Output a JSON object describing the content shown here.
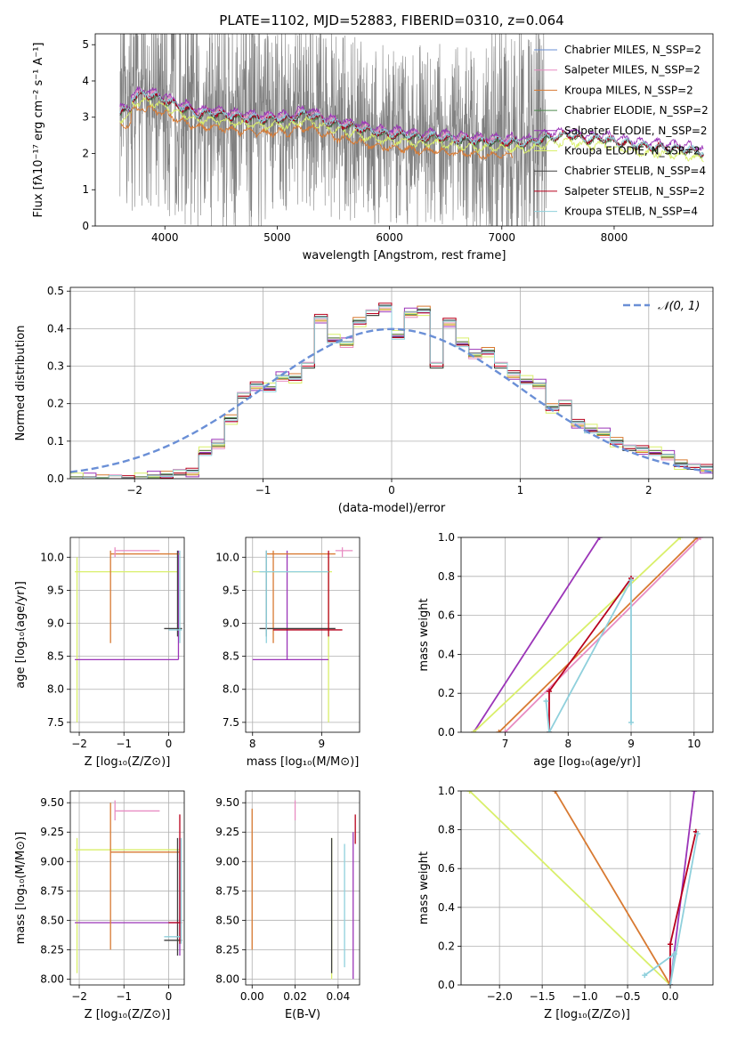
{
  "figure": {
    "title": "PLATE=1102, MJD=52883, FIBERID=0310, z=0.064"
  },
  "colors": {
    "data": "#808080",
    "chabrier_miles": "#6a8fd6",
    "salpeter_miles": "#e88cc2",
    "kroupa_miles": "#d87a32",
    "chabrier_elodie": "#4e8a4e",
    "salpeter_elodie": "#9b35b8",
    "kroupa_elodie": "#d9ef6a",
    "chabrier_stelib": "#404040",
    "salpeter_stelib": "#b8001c",
    "kroupa_stelib": "#8fd0dc",
    "normal": "#6a8fd6"
  },
  "chart_data": [
    {
      "id": "spectrum",
      "type": "line",
      "title": "PLATE=1102, MJD=52883, FIBERID=0310, z=0.064",
      "xlabel": "wavelength [Angstrom, rest frame]",
      "ylabel": "Flux [fλ10⁻¹⁷ erg cm⁻² s⁻¹ A⁻¹]",
      "xlim": [
        3380,
        8880
      ],
      "ylim": [
        0,
        5.3
      ],
      "xticks": [
        4000,
        5000,
        6000,
        7000,
        8000
      ],
      "yticks": [
        0,
        1,
        2,
        3,
        4,
        5
      ],
      "legend_position": "upper-right",
      "legend": [
        {
          "label": "Chabrier MILES, N_SSP=2",
          "color_key": "chabrier_miles"
        },
        {
          "label": "Salpeter MILES, N_SSP=2",
          "color_key": "salpeter_miles"
        },
        {
          "label": "Kroupa MILES, N_SSP=2",
          "color_key": "kroupa_miles"
        },
        {
          "label": "Chabrier ELODIE, N_SSP=2",
          "color_key": "chabrier_elodie"
        },
        {
          "label": "Salpeter ELODIE, N_SSP=2",
          "color_key": "salpeter_elodie"
        },
        {
          "label": "Kroupa ELODIE, N_SSP=2",
          "color_key": "kroupa_elodie"
        },
        {
          "label": "Chabrier STELIB, N_SSP=4",
          "color_key": "chabrier_stelib"
        },
        {
          "label": "Salpeter STELIB, N_SSP=2",
          "color_key": "salpeter_stelib"
        },
        {
          "label": "Kroupa STELIB, N_SSP=4",
          "color_key": "kroupa_stelib"
        }
      ],
      "data_range": [
        3600,
        7400
      ],
      "model_continuum": {
        "x": [
          3600,
          3700,
          3800,
          3900,
          4000,
          4100,
          4200,
          4300,
          4400,
          4500,
          4600,
          4700,
          4800,
          4900,
          5000,
          5100,
          5200,
          5300,
          5400,
          5500,
          5600,
          5700,
          5800,
          5900,
          6000,
          6100,
          6200,
          6300,
          6400,
          6500,
          6600,
          6700,
          6800,
          6900,
          7000,
          7100,
          7200,
          7300,
          7400,
          7500,
          7600,
          7700,
          7800,
          7900,
          8000,
          8100,
          8200,
          8300,
          8400,
          8500,
          8600,
          8700,
          8800
        ],
        "y": [
          3.4,
          3.5,
          3.6,
          3.55,
          3.45,
          3.3,
          3.2,
          3.05,
          3.1,
          3.05,
          3.0,
          2.95,
          2.95,
          2.9,
          2.95,
          2.9,
          3.05,
          3.05,
          2.9,
          2.8,
          2.75,
          2.7,
          2.6,
          2.55,
          2.5,
          2.5,
          2.45,
          2.4,
          2.45,
          2.4,
          2.35,
          2.35,
          2.3,
          2.3,
          2.3,
          2.3,
          2.25,
          2.3,
          2.4,
          2.45,
          2.5,
          2.4,
          2.35,
          2.4,
          2.3,
          2.25,
          2.2,
          2.15,
          2.15,
          2.1,
          2.1,
          2.05,
          2.0
        ]
      },
      "model_offsets": {
        "chabrier_miles": 0.05,
        "salpeter_miles": 0.1,
        "kroupa_miles": -0.35,
        "chabrier_elodie": 0.0,
        "salpeter_elodie": 0.15,
        "kroupa_elodie": -0.15,
        "chabrier_stelib": 0.02,
        "salpeter_stelib": 0.03,
        "kroupa_stelib": 0.05
      }
    },
    {
      "id": "residuals",
      "type": "line",
      "xlabel": "(data-model)/error",
      "ylabel": "Normed distribution",
      "xlim": [
        -2.5,
        2.5
      ],
      "ylim": [
        0,
        0.51
      ],
      "xticks": [
        -2,
        -1,
        0,
        1,
        2
      ],
      "xtick_labels": [
        "−2",
        "−1",
        "0",
        "1",
        "2"
      ],
      "yticks": [
        0.0,
        0.1,
        0.2,
        0.3,
        0.4,
        0.5
      ],
      "ytick_labels": [
        "0.0",
        "0.1",
        "0.2",
        "0.3",
        "0.4",
        "0.5"
      ],
      "legend_position": "upper-right",
      "normal_label": "𝒩(0, 1)",
      "bins": [
        -2.5,
        -2.4,
        -2.3,
        -2.2,
        -2.1,
        -2.0,
        -1.9,
        -1.8,
        -1.7,
        -1.6,
        -1.5,
        -1.4,
        -1.3,
        -1.2,
        -1.1,
        -1.0,
        -0.9,
        -0.8,
        -0.7,
        -0.6,
        -0.5,
        -0.4,
        -0.3,
        -0.2,
        -0.1,
        0.0,
        0.1,
        0.2,
        0.3,
        0.4,
        0.5,
        0.6,
        0.7,
        0.8,
        0.9,
        1.0,
        1.1,
        1.2,
        1.3,
        1.4,
        1.5,
        1.6,
        1.7,
        1.8,
        1.9,
        2.0,
        2.1,
        2.2,
        2.3,
        2.4,
        2.5
      ],
      "histogram": [
        0.0,
        0.0,
        0.0,
        0.0,
        0.0,
        0.0,
        0.005,
        0.01,
        0.015,
        0.02,
        0.07,
        0.09,
        0.16,
        0.22,
        0.25,
        0.24,
        0.27,
        0.27,
        0.3,
        0.43,
        0.37,
        0.36,
        0.42,
        0.44,
        0.46,
        0.38,
        0.44,
        0.45,
        0.3,
        0.42,
        0.36,
        0.33,
        0.34,
        0.3,
        0.28,
        0.26,
        0.25,
        0.19,
        0.2,
        0.15,
        0.13,
        0.12,
        0.1,
        0.08,
        0.08,
        0.07,
        0.06,
        0.04,
        0.03,
        0.03
      ],
      "hist_jitter": {
        "chabrier_miles": 0.0,
        "salpeter_miles": 0.01,
        "kroupa_miles": -0.01,
        "chabrier_elodie": 0.005,
        "salpeter_elodie": 0.015,
        "kroupa_elodie": -0.015,
        "chabrier_stelib": -0.005,
        "salpeter_stelib": 0.008,
        "kroupa_stelib": -0.008
      }
    },
    {
      "id": "age_vs_Z",
      "type": "scatter",
      "xlabel": "Z [log₁₀(Z/Z⊙)]",
      "ylabel": "age  [log₁₀(age/yr)]",
      "xlim": [
        -2.2,
        0.35
      ],
      "ylim": [
        7.35,
        10.3
      ],
      "xticks": [
        -2,
        -1,
        0
      ],
      "xtick_labels": [
        "−2",
        "−1",
        "0"
      ],
      "yticks": [
        7.5,
        8.0,
        8.5,
        9.0,
        9.5,
        10.0
      ],
      "ytick_labels": [
        "7.5",
        "8.0",
        "8.5",
        "9.0",
        "9.5",
        "10.0"
      ],
      "segments": [
        {
          "c": "kroupa_elodie",
          "h": [
            -2.1,
            0.2,
            9.78
          ],
          "v": [
            -2.05,
            7.5,
            10.0
          ]
        },
        {
          "c": "salpeter_elodie",
          "h": [
            -2.1,
            0.22,
            8.45
          ],
          "v": [
            0.22,
            8.45,
            10.1
          ]
        },
        {
          "c": "kroupa_miles",
          "h": [
            -1.3,
            0.25,
            10.05
          ],
          "v": [
            -1.3,
            8.7,
            10.1
          ]
        },
        {
          "c": "salpeter_miles",
          "h": [
            -1.2,
            -0.2,
            10.1
          ],
          "v": [
            -1.2,
            10.0,
            10.15
          ]
        },
        {
          "c": "chabrier_stelib",
          "h": [
            -0.1,
            0.3,
            8.92
          ],
          "v": [
            0.2,
            8.8,
            10.1
          ]
        },
        {
          "c": "kroupa_stelib",
          "h": [
            0.0,
            0.3,
            8.9
          ],
          "v": [
            0.25,
            8.7,
            10.1
          ]
        }
      ]
    },
    {
      "id": "age_vs_mass",
      "type": "scatter",
      "xlabel": "mass [log₁₀(M/M⊙)]",
      "xlim": [
        7.9,
        9.55
      ],
      "ylim": [
        7.35,
        10.3
      ],
      "xticks": [
        8,
        9
      ],
      "xtick_labels": [
        "8",
        "9"
      ],
      "yticks": [
        7.5,
        8.0,
        8.5,
        9.0,
        9.5,
        10.0
      ],
      "ytick_labels": [
        "7.5",
        "8.0",
        "8.5",
        "9.0",
        "9.5",
        "10.0"
      ],
      "segments": [
        {
          "c": "kroupa_elodie",
          "h": [
            8.0,
            9.15,
            9.78
          ],
          "v": [
            9.1,
            7.5,
            10.0
          ]
        },
        {
          "c": "salpeter_elodie",
          "h": [
            8.0,
            9.1,
            8.45
          ],
          "v": [
            8.5,
            8.45,
            10.1
          ]
        },
        {
          "c": "kroupa_miles",
          "h": [
            8.2,
            9.2,
            10.05
          ],
          "v": [
            8.3,
            8.7,
            10.1
          ]
        },
        {
          "c": "salpeter_miles",
          "h": [
            9.2,
            9.45,
            10.1
          ],
          "v": [
            9.3,
            10.0,
            10.15
          ]
        },
        {
          "c": "chabrier_stelib",
          "h": [
            8.1,
            9.2,
            8.92
          ],
          "v": [
            8.2,
            8.8,
            10.1
          ]
        },
        {
          "c": "salpeter_stelib",
          "h": [
            8.3,
            9.3,
            8.9
          ],
          "v": [
            9.1,
            8.8,
            10.1
          ]
        },
        {
          "c": "kroupa_stelib",
          "h": [
            8.1,
            9.1,
            9.78
          ],
          "v": [
            8.2,
            8.7,
            10.1
          ]
        }
      ]
    },
    {
      "id": "massweight_vs_age",
      "type": "line",
      "xlabel": "age  [log₁₀(age/yr)]",
      "ylabel": "mass weight",
      "xlim": [
        6.3,
        10.3
      ],
      "ylim": [
        0,
        1.0
      ],
      "xticks": [
        7,
        8,
        9,
        10
      ],
      "xtick_labels": [
        "7",
        "8",
        "9",
        "10"
      ],
      "yticks": [
        0.0,
        0.2,
        0.4,
        0.6,
        0.8,
        1.0
      ],
      "ytick_labels": [
        "0.0",
        "0.2",
        "0.4",
        "0.6",
        "0.8",
        "1.0"
      ],
      "series": [
        {
          "c": "salpeter_elodie",
          "x": [
            6.5,
            8.5
          ],
          "y": [
            0.0,
            1.0
          ]
        },
        {
          "c": "kroupa_elodie",
          "x": [
            6.5,
            9.78
          ],
          "y": [
            0.0,
            1.0
          ]
        },
        {
          "c": "kroupa_miles",
          "x": [
            6.9,
            10.05
          ],
          "y": [
            0.0,
            1.0
          ]
        },
        {
          "c": "salpeter_miles",
          "x": [
            7.0,
            10.1
          ],
          "y": [
            0.0,
            1.0
          ]
        },
        {
          "c": "salpeter_stelib",
          "x": [
            7.7,
            7.7,
            9.0
          ],
          "y": [
            0.0,
            0.21,
            0.79
          ]
        },
        {
          "c": "kroupa_stelib",
          "x": [
            7.65,
            7.7,
            9.0,
            9.0
          ],
          "y": [
            0.16,
            0.0,
            0.78,
            0.05
          ]
        }
      ]
    },
    {
      "id": "mass_vs_Z",
      "type": "scatter",
      "xlabel": "Z [log₁₀(Z/Z⊙)]",
      "ylabel": "mass [log₁₀(M/M⊙)]",
      "xlim": [
        -2.2,
        0.35
      ],
      "ylim": [
        7.95,
        9.6
      ],
      "xticks": [
        -2,
        -1,
        0
      ],
      "xtick_labels": [
        "−2",
        "−1",
        "0"
      ],
      "yticks": [
        8.0,
        8.25,
        8.5,
        8.75,
        9.0,
        9.25,
        9.5
      ],
      "ytick_labels": [
        "8.00",
        "8.25",
        "8.50",
        "8.75",
        "9.00",
        "9.25",
        "9.50"
      ],
      "segments": [
        {
          "c": "kroupa_elodie",
          "h": [
            -2.1,
            0.25,
            9.1
          ],
          "v": [
            -2.05,
            8.05,
            9.2
          ]
        },
        {
          "c": "salpeter_elodie",
          "h": [
            -2.1,
            0.25,
            8.48
          ],
          "v": [
            0.25,
            8.2,
            9.2
          ]
        },
        {
          "c": "kroupa_miles",
          "h": [
            -1.3,
            0.25,
            9.08
          ],
          "v": [
            -1.3,
            8.25,
            9.5
          ]
        },
        {
          "c": "salpeter_miles",
          "h": [
            -1.2,
            -0.2,
            9.43
          ],
          "v": [
            -1.2,
            9.35,
            9.52
          ]
        },
        {
          "c": "chabrier_stelib",
          "h": [
            -0.1,
            0.3,
            8.33
          ],
          "v": [
            0.2,
            8.2,
            9.2
          ]
        },
        {
          "c": "salpeter_stelib",
          "h": [
            0.0,
            0.3,
            8.48
          ],
          "v": [
            0.25,
            8.3,
            9.4
          ]
        },
        {
          "c": "kroupa_stelib",
          "h": [
            -0.1,
            0.25,
            8.36
          ],
          "v": [
            0.28,
            8.3,
            9.2
          ]
        }
      ]
    },
    {
      "id": "mass_vs_ebv",
      "type": "scatter",
      "xlabel": "E(B-V)",
      "xlim": [
        -0.003,
        0.05
      ],
      "ylim": [
        7.95,
        9.6
      ],
      "xticks": [
        0.0,
        0.02,
        0.04
      ],
      "xtick_labels": [
        "0.00",
        "0.02",
        "0.04"
      ],
      "yticks": [
        8.0,
        8.25,
        8.5,
        8.75,
        9.0,
        9.25,
        9.5
      ],
      "ytick_labels": [
        "8.00",
        "8.25",
        "8.50",
        "8.75",
        "9.00",
        "9.25",
        "9.50"
      ],
      "segments": [
        {
          "c": "kroupa_miles",
          "v": [
            0.0,
            8.25,
            9.45
          ]
        },
        {
          "c": "salpeter_miles",
          "v": [
            0.02,
            9.35,
            9.52
          ]
        },
        {
          "c": "kroupa_elodie",
          "v": [
            0.037,
            8.0,
            9.2
          ]
        },
        {
          "c": "chabrier_stelib",
          "v": [
            0.037,
            8.05,
            9.2
          ]
        },
        {
          "c": "kroupa_stelib",
          "v": [
            0.043,
            8.1,
            9.15
          ]
        },
        {
          "c": "salpeter_elodie",
          "v": [
            0.047,
            8.0,
            9.25
          ]
        },
        {
          "c": "salpeter_stelib",
          "v": [
            0.048,
            9.15,
            9.4
          ]
        }
      ]
    },
    {
      "id": "massweight_vs_Z",
      "type": "line",
      "xlabel": "Z [log₁₀(Z/Z⊙)]",
      "ylabel": "mass weight",
      "xlim": [
        -2.45,
        0.5
      ],
      "ylim": [
        0,
        1.0
      ],
      "xticks": [
        -2.0,
        -1.5,
        -1.0,
        -0.5,
        0.0
      ],
      "xtick_labels": [
        "−2.0",
        "−1.5",
        "−1.0",
        "−0.5",
        "0.0"
      ],
      "yticks": [
        0.0,
        0.2,
        0.4,
        0.6,
        0.8,
        1.0
      ],
      "ytick_labels": [
        "0.0",
        "0.2",
        "0.4",
        "0.6",
        "0.8",
        "1.0"
      ],
      "series": [
        {
          "c": "kroupa_elodie",
          "x": [
            -2.35,
            0.0
          ],
          "y": [
            1.0,
            0.0
          ]
        },
        {
          "c": "kroupa_miles",
          "x": [
            -1.35,
            0.0
          ],
          "y": [
            1.0,
            0.0
          ]
        },
        {
          "c": "salpeter_elodie",
          "x": [
            0.0,
            0.28
          ],
          "y": [
            0.0,
            1.0
          ]
        },
        {
          "c": "salpeter_stelib",
          "x": [
            0.0,
            0.0,
            0.3
          ],
          "y": [
            0.0,
            0.21,
            0.79
          ]
        },
        {
          "c": "kroupa_stelib",
          "x": [
            -0.3,
            0.05,
            0.0,
            0.32
          ],
          "y": [
            0.05,
            0.16,
            0.0,
            0.78
          ]
        }
      ]
    }
  ]
}
